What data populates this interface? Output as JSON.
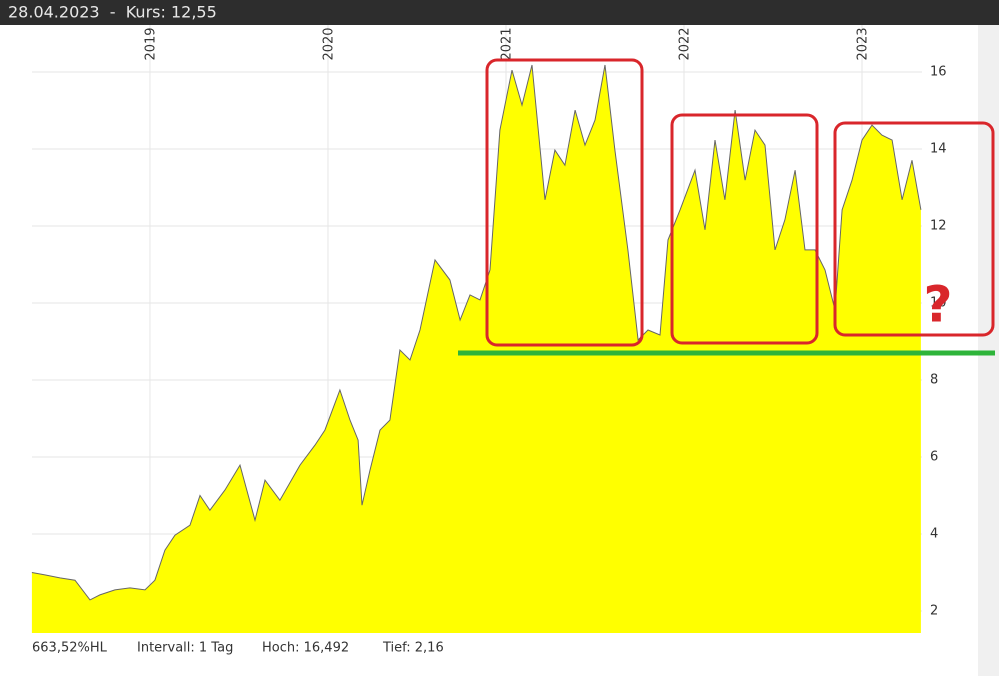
{
  "chart_data": {
    "type": "area",
    "title": "28.04.2023  -  Kurs: 12,55",
    "footer": [
      "663,52%HL",
      "Intervall: 1 Tag",
      "Hoch: 16,492",
      "Tief: 2,16"
    ],
    "annotation": "?",
    "xlim": [
      2018.225,
      2023.337
    ],
    "xticks": [
      2019,
      2020,
      2021,
      2022,
      2023
    ],
    "ylim": [
      1.43,
      17.22
    ],
    "yticks": [
      2,
      4,
      6,
      8,
      10,
      12,
      14,
      16
    ],
    "grid": true,
    "series": [
      {
        "color": "#ffff00",
        "x": [
          2018.337,
          2018.41,
          2018.494,
          2018.579,
          2018.663,
          2018.719,
          2018.803,
          2018.888,
          2018.972,
          2019.028,
          2019.084,
          2019.14,
          2019.225,
          2019.281,
          2019.337,
          2019.421,
          2019.506,
          2019.59,
          2019.646,
          2019.73,
          2019.843,
          2019.927,
          2019.983,
          2020.067,
          2020.124,
          2020.169,
          2020.191,
          2020.236,
          2020.292,
          2020.348,
          2020.404,
          2020.461,
          2020.517,
          2020.601,
          2020.685,
          2020.742,
          2020.798,
          2020.854,
          2020.91,
          2020.966,
          2021.034,
          2021.09,
          2021.146,
          2021.219,
          2021.275,
          2021.331,
          2021.388,
          2021.444,
          2021.5,
          2021.556,
          2021.612,
          2021.685,
          2021.742,
          2021.798,
          2021.865,
          2021.91,
          2021.978,
          2022.062,
          2022.118,
          2022.174,
          2022.23,
          2022.287,
          2022.343,
          2022.399,
          2022.455,
          2022.511,
          2022.567,
          2022.624,
          2022.68,
          2022.736,
          2022.792,
          2022.848,
          2022.888,
          2022.944,
          2023.0,
          2023.056,
          2023.112,
          2023.169,
          2023.225,
          2023.281,
          2023.331
        ],
        "values": [
          3.0,
          2.94,
          2.86,
          2.8,
          2.29,
          2.42,
          2.55,
          2.6,
          2.55,
          2.8,
          3.58,
          3.97,
          4.23,
          5.0,
          4.62,
          5.14,
          5.79,
          4.36,
          5.4,
          4.88,
          5.79,
          6.31,
          6.7,
          7.74,
          6.96,
          6.44,
          4.75,
          5.66,
          6.7,
          6.96,
          8.78,
          8.52,
          9.3,
          11.12,
          10.6,
          9.56,
          10.21,
          10.08,
          10.86,
          14.49,
          16.05,
          15.14,
          16.18,
          12.68,
          13.97,
          13.58,
          15.01,
          14.1,
          14.75,
          16.18,
          13.97,
          11.38,
          9.04,
          9.3,
          9.17,
          11.64,
          12.42,
          13.45,
          11.9,
          14.23,
          12.68,
          15.01,
          13.19,
          14.49,
          14.1,
          11.38,
          12.16,
          13.45,
          11.38,
          11.38,
          10.86,
          9.82,
          12.42,
          13.19,
          14.23,
          14.62,
          14.36,
          14.23,
          12.68,
          13.71,
          12.42
        ]
      }
    ]
  }
}
